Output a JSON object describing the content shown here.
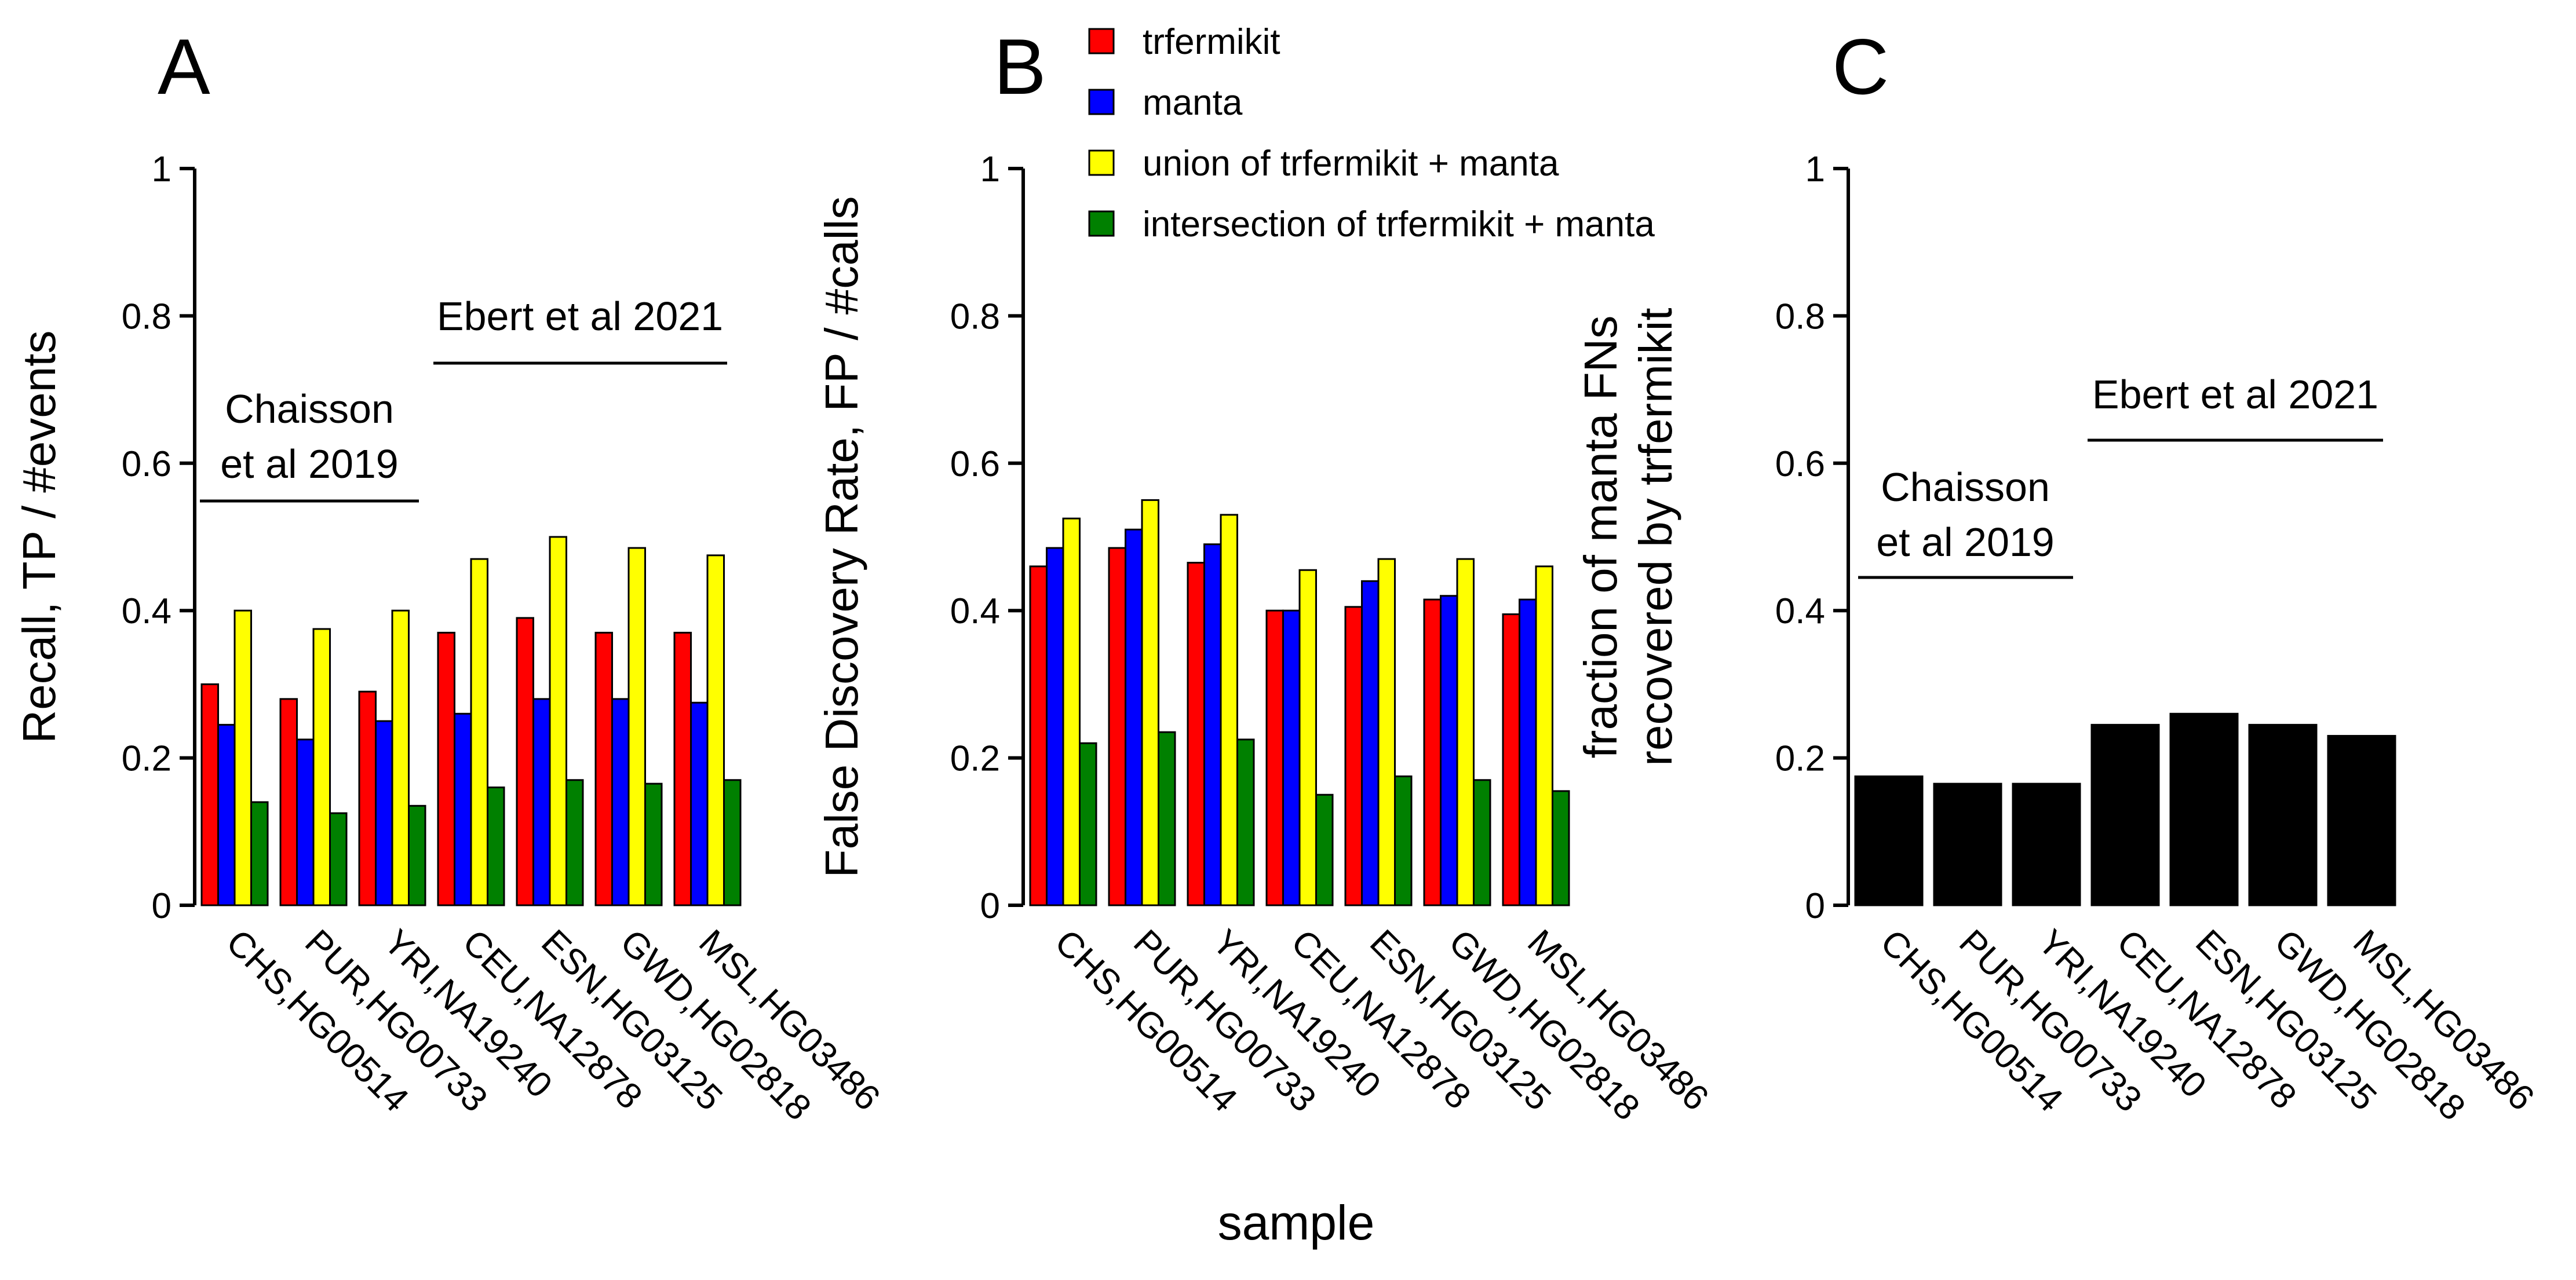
{
  "figure": {
    "xlabel": "sample"
  },
  "legend": {
    "items": [
      {
        "label": "trfermikit",
        "color": "#ff0000"
      },
      {
        "label": "manta",
        "color": "#0000ff"
      },
      {
        "label": "union of trfermikit + manta",
        "color": "#ffff00"
      },
      {
        "label": "intersection of trfermikit + manta",
        "color": "#008000"
      }
    ]
  },
  "chart_data": [
    {
      "type": "bar",
      "panel": "A",
      "ylabel": "Recall, TP / #events",
      "ylim": [
        0,
        1
      ],
      "yticks": [
        "0",
        "0.2",
        "0.4",
        "0.6",
        "0.8",
        "1"
      ],
      "categories": [
        "CHS,HG00514",
        "PUR,HG00733",
        "YRI,NA19240",
        "CEU,NA12878",
        "ESN,HG03125",
        "GWD,HG02818",
        "MSL,HG03486"
      ],
      "series": [
        {
          "name": "trfermikit",
          "color": "#ff0000",
          "values": [
            0.3,
            0.28,
            0.29,
            0.37,
            0.39,
            0.37,
            0.37
          ]
        },
        {
          "name": "manta",
          "color": "#0000ff",
          "values": [
            0.245,
            0.225,
            0.25,
            0.26,
            0.28,
            0.28,
            0.275
          ]
        },
        {
          "name": "union of trfermikit + manta",
          "color": "#ffff00",
          "values": [
            0.4,
            0.375,
            0.4,
            0.47,
            0.5,
            0.485,
            0.475
          ]
        },
        {
          "name": "intersection of trfermikit + manta",
          "color": "#008000",
          "values": [
            0.14,
            0.125,
            0.135,
            0.16,
            0.17,
            0.165,
            0.17
          ]
        }
      ],
      "groups": [
        {
          "lines": [
            "Chaisson",
            "et al 2019"
          ],
          "first": 0,
          "last": 2
        },
        {
          "lines": [
            "Ebert et al 2021"
          ],
          "first": 3,
          "last": 6
        }
      ]
    },
    {
      "type": "bar",
      "panel": "B",
      "ylabel": "False Discovery Rate, FP / #calls",
      "ylim": [
        0,
        1
      ],
      "yticks": [
        "0",
        "0.2",
        "0.4",
        "0.6",
        "0.8",
        "1"
      ],
      "categories": [
        "CHS,HG00514",
        "PUR,HG00733",
        "YRI,NA19240",
        "CEU,NA12878",
        "ESN,HG03125",
        "GWD,HG02818",
        "MSL,HG03486"
      ],
      "series": [
        {
          "name": "trfermikit",
          "color": "#ff0000",
          "values": [
            0.46,
            0.485,
            0.465,
            0.4,
            0.405,
            0.415,
            0.395
          ]
        },
        {
          "name": "manta",
          "color": "#0000ff",
          "values": [
            0.485,
            0.51,
            0.49,
            0.4,
            0.44,
            0.42,
            0.415
          ]
        },
        {
          "name": "union of trfermikit + manta",
          "color": "#ffff00",
          "values": [
            0.525,
            0.55,
            0.53,
            0.455,
            0.47,
            0.47,
            0.46
          ]
        },
        {
          "name": "intersection of trfermikit + manta",
          "color": "#008000",
          "values": [
            0.22,
            0.235,
            0.225,
            0.15,
            0.175,
            0.17,
            0.155
          ]
        }
      ],
      "groups": []
    },
    {
      "type": "bar",
      "panel": "C",
      "ylabel": [
        "fraction of manta FNs",
        "recovered by trfermikit"
      ],
      "ylim": [
        0,
        1
      ],
      "yticks": [
        "0",
        "0.2",
        "0.4",
        "0.6",
        "0.8",
        "1"
      ],
      "categories": [
        "CHS,HG00514",
        "PUR,HG00733",
        "YRI,NA19240",
        "CEU,NA12878",
        "ESN,HG03125",
        "GWD,HG02818",
        "MSL,HG03486"
      ],
      "series": [
        {
          "name": "fraction recovered",
          "color": "#000000",
          "values": [
            0.175,
            0.165,
            0.165,
            0.245,
            0.26,
            0.245,
            0.23
          ]
        }
      ],
      "groups": [
        {
          "lines": [
            "Chaisson",
            "et al 2019"
          ],
          "first": 0,
          "last": 2
        },
        {
          "lines": [
            "Ebert et al 2021"
          ],
          "first": 3,
          "last": 6
        }
      ]
    }
  ]
}
